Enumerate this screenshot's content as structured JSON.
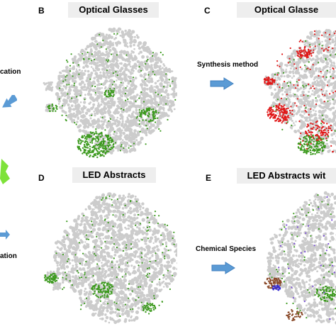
{
  "panels": {
    "B": {
      "letter": "B",
      "title": "Optical Glasses"
    },
    "C": {
      "letter": "C",
      "title": "Optical Glasse"
    },
    "D": {
      "letter": "D",
      "title": "LED Abstracts"
    },
    "E": {
      "letter": "E",
      "title": "LED Abstracts wit"
    }
  },
  "labels": {
    "left_top": "cation",
    "left_bottom": "ation",
    "synthesis": "Synthesis method",
    "chemical": "Chemical Species"
  },
  "colors": {
    "background_points": "#cccccc",
    "green_points": "#3c9a1e",
    "red_points": "#e01818",
    "arrow": "#5b9bd5",
    "title_box": "#eeeeee",
    "left_edge_green": "#7ee23a"
  }
}
